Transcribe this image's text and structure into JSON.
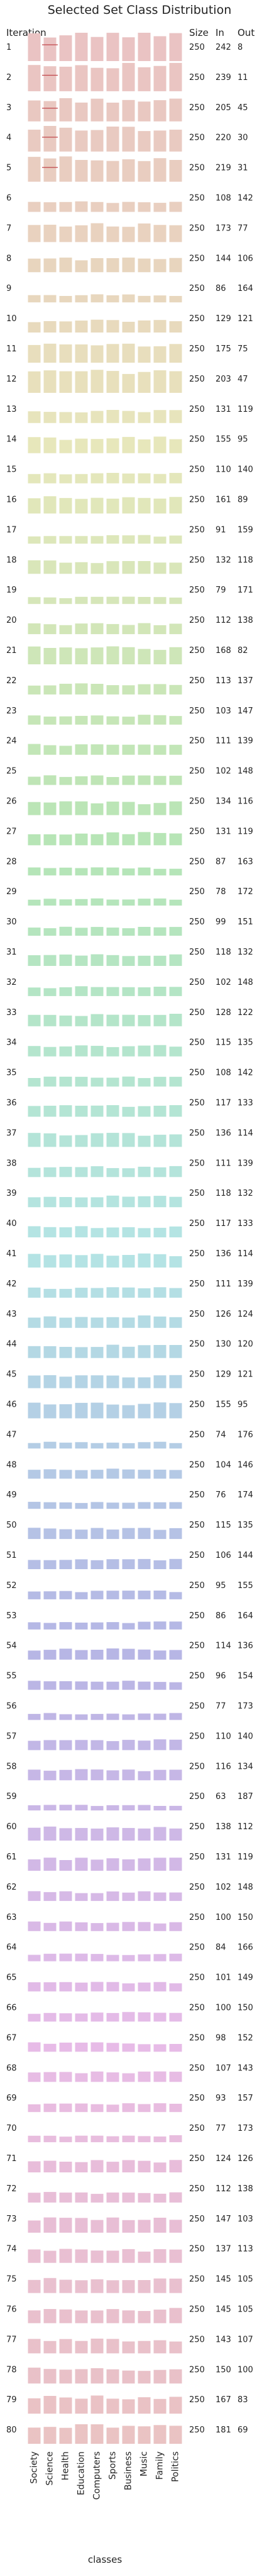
{
  "chart_data": {
    "type": "bar",
    "title": "Selected Set Class Distribution",
    "row_header": "Iteration",
    "column_headers": [
      "Size",
      "In",
      "Out"
    ],
    "xlabel": "classes",
    "categories": [
      "Society",
      "Science",
      "Health",
      "Education",
      "Computers",
      "Sports",
      "Business",
      "Music",
      "Family",
      "Politics"
    ],
    "iterations": [
      {
        "label": "1",
        "size": 250,
        "in": 242,
        "out": 8
      },
      {
        "label": "2",
        "size": 250,
        "in": 239,
        "out": 11
      },
      {
        "label": "3",
        "size": 250,
        "in": 205,
        "out": 45
      },
      {
        "label": "4",
        "size": 250,
        "in": 220,
        "out": 30
      },
      {
        "label": "5",
        "size": 250,
        "in": 219,
        "out": 31
      },
      {
        "label": "6",
        "size": 250,
        "in": 108,
        "out": 142
      },
      {
        "label": "7",
        "size": 250,
        "in": 173,
        "out": 77
      },
      {
        "label": "8",
        "size": 250,
        "in": 144,
        "out": 106
      },
      {
        "label": "9",
        "size": 250,
        "in": 86,
        "out": 164
      },
      {
        "label": "10",
        "size": 250,
        "in": 129,
        "out": 121
      },
      {
        "label": "11",
        "size": 250,
        "in": 175,
        "out": 75
      },
      {
        "label": "12",
        "size": 250,
        "in": 203,
        "out": 47
      },
      {
        "label": "13",
        "size": 250,
        "in": 131,
        "out": 119
      },
      {
        "label": "14",
        "size": 250,
        "in": 155,
        "out": 95
      },
      {
        "label": "15",
        "size": 250,
        "in": 110,
        "out": 140
      },
      {
        "label": "16",
        "size": 250,
        "in": 161,
        "out": 89
      },
      {
        "label": "17",
        "size": 250,
        "in": 91,
        "out": 159
      },
      {
        "label": "18",
        "size": 250,
        "in": 132,
        "out": 118
      },
      {
        "label": "19",
        "size": 250,
        "in": 79,
        "out": 171
      },
      {
        "label": "20",
        "size": 250,
        "in": 112,
        "out": 138
      },
      {
        "label": "21",
        "size": 250,
        "in": 168,
        "out": 82
      },
      {
        "label": "22",
        "size": 250,
        "in": 113,
        "out": 137
      },
      {
        "label": "23",
        "size": 250,
        "in": 103,
        "out": 147
      },
      {
        "label": "24",
        "size": 250,
        "in": 111,
        "out": 139
      },
      {
        "label": "25",
        "size": 250,
        "in": 102,
        "out": 148
      },
      {
        "label": "26",
        "size": 250,
        "in": 134,
        "out": 116
      },
      {
        "label": "27",
        "size": 250,
        "in": 131,
        "out": 119
      },
      {
        "label": "28",
        "size": 250,
        "in": 87,
        "out": 163
      },
      {
        "label": "29",
        "size": 250,
        "in": 78,
        "out": 172
      },
      {
        "label": "30",
        "size": 250,
        "in": 99,
        "out": 151
      },
      {
        "label": "31",
        "size": 250,
        "in": 118,
        "out": 132
      },
      {
        "label": "32",
        "size": 250,
        "in": 102,
        "out": 148
      },
      {
        "label": "33",
        "size": 250,
        "in": 128,
        "out": 122
      },
      {
        "label": "34",
        "size": 250,
        "in": 115,
        "out": 135
      },
      {
        "label": "35",
        "size": 250,
        "in": 108,
        "out": 142
      },
      {
        "label": "36",
        "size": 250,
        "in": 117,
        "out": 133
      },
      {
        "label": "37",
        "size": 250,
        "in": 136,
        "out": 114
      },
      {
        "label": "38",
        "size": 250,
        "in": 111,
        "out": 139
      },
      {
        "label": "39",
        "size": 250,
        "in": 118,
        "out": 132
      },
      {
        "label": "40",
        "size": 250,
        "in": 117,
        "out": 133
      },
      {
        "label": "41",
        "size": 250,
        "in": 136,
        "out": 114
      },
      {
        "label": "42",
        "size": 250,
        "in": 111,
        "out": 139
      },
      {
        "label": "43",
        "size": 250,
        "in": 126,
        "out": 124
      },
      {
        "label": "44",
        "size": 250,
        "in": 130,
        "out": 120
      },
      {
        "label": "45",
        "size": 250,
        "in": 129,
        "out": 121
      },
      {
        "label": "46",
        "size": 250,
        "in": 155,
        "out": 95
      },
      {
        "label": "47",
        "size": 250,
        "in": 74,
        "out": 176
      },
      {
        "label": "48",
        "size": 250,
        "in": 104,
        "out": 146
      },
      {
        "label": "49",
        "size": 250,
        "in": 76,
        "out": 174
      },
      {
        "label": "50",
        "size": 250,
        "in": 115,
        "out": 135
      },
      {
        "label": "51",
        "size": 250,
        "in": 106,
        "out": 144
      },
      {
        "label": "52",
        "size": 250,
        "in": 95,
        "out": 155
      },
      {
        "label": "53",
        "size": 250,
        "in": 86,
        "out": 164
      },
      {
        "label": "54",
        "size": 250,
        "in": 114,
        "out": 136
      },
      {
        "label": "55",
        "size": 250,
        "in": 96,
        "out": 154
      },
      {
        "label": "56",
        "size": 250,
        "in": 77,
        "out": 173
      },
      {
        "label": "57",
        "size": 250,
        "in": 110,
        "out": 140
      },
      {
        "label": "58",
        "size": 250,
        "in": 116,
        "out": 134
      },
      {
        "label": "59",
        "size": 250,
        "in": 63,
        "out": 187
      },
      {
        "label": "60",
        "size": 250,
        "in": 138,
        "out": 112
      },
      {
        "label": "61",
        "size": 250,
        "in": 131,
        "out": 119
      },
      {
        "label": "62",
        "size": 250,
        "in": 102,
        "out": 148
      },
      {
        "label": "63",
        "size": 250,
        "in": 100,
        "out": 150
      },
      {
        "label": "64",
        "size": 250,
        "in": 84,
        "out": 166
      },
      {
        "label": "65",
        "size": 250,
        "in": 101,
        "out": 149
      },
      {
        "label": "66",
        "size": 250,
        "in": 100,
        "out": 150
      },
      {
        "label": "67",
        "size": 250,
        "in": 98,
        "out": 152
      },
      {
        "label": "68",
        "size": 250,
        "in": 107,
        "out": 143
      },
      {
        "label": "69",
        "size": 250,
        "in": 93,
        "out": 157
      },
      {
        "label": "70",
        "size": 250,
        "in": 77,
        "out": 173
      },
      {
        "label": "71",
        "size": 250,
        "in": 124,
        "out": 126
      },
      {
        "label": "72",
        "size": 250,
        "in": 112,
        "out": 138
      },
      {
        "label": "73",
        "size": 250,
        "in": 147,
        "out": 103
      },
      {
        "label": "74",
        "size": 250,
        "in": 137,
        "out": 113
      },
      {
        "label": "75",
        "size": 250,
        "in": 145,
        "out": 105
      },
      {
        "label": "76",
        "size": 250,
        "in": 145,
        "out": 105
      },
      {
        "label": "77",
        "size": 250,
        "in": 143,
        "out": 107
      },
      {
        "label": "78",
        "size": 250,
        "in": 150,
        "out": 100
      },
      {
        "label": "79",
        "size": 250,
        "in": 167,
        "out": 83
      },
      {
        "label": "80",
        "size": 250,
        "in": 181,
        "out": 69
      }
    ],
    "grid": false,
    "legend": "none"
  }
}
